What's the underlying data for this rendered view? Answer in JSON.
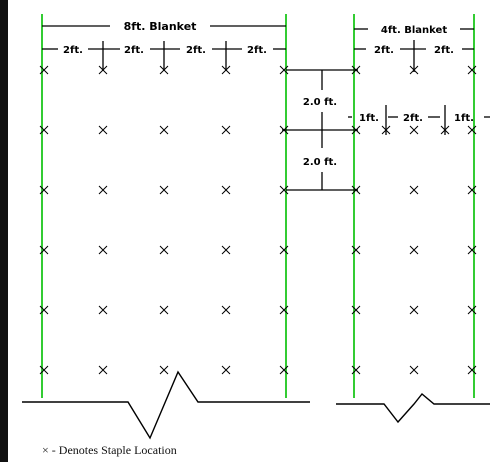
{
  "colors": {
    "stake_line": "#33cc33",
    "ink": "#000000",
    "border": "#111111"
  },
  "labels": {
    "blanket_8ft": "8ft. Blanket",
    "blanket_4ft": "4ft. Blanket",
    "seg_2ft": "2ft.",
    "seg_1ft": "1ft.",
    "spacing_2ft": "2.0 ft."
  },
  "legend": {
    "symbol": "×",
    "text": "- Denotes Staple Location"
  },
  "staples": {
    "blanket_8ft": {
      "columns": 5,
      "rows": 6
    },
    "blanket_4ft": {
      "columns": 3,
      "rows": 6
    }
  },
  "icons": {
    "staple_marker": "x-mark-icon",
    "break_symbol": "zigzag-break-icon"
  }
}
